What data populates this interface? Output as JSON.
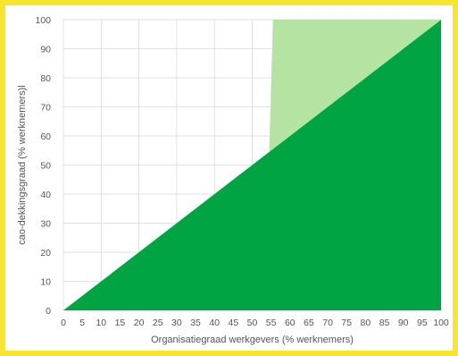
{
  "chart_data": {
    "type": "area",
    "title": "",
    "xlabel": "Organisatiegraad werkgevers (% werknemers)",
    "ylabel": "cao-dekkingsgraad (% werknemers)l",
    "xlim": [
      0,
      100
    ],
    "ylim": [
      0,
      100
    ],
    "x_ticks": [
      0,
      5,
      10,
      15,
      20,
      25,
      30,
      35,
      40,
      45,
      50,
      55,
      60,
      65,
      70,
      75,
      80,
      85,
      90,
      95,
      100
    ],
    "y_ticks": [
      0,
      10,
      20,
      30,
      40,
      50,
      60,
      70,
      80,
      90,
      100
    ],
    "grid": true,
    "legend": "none",
    "series": [
      {
        "values_x": [
          0,
          100,
          100
        ],
        "values_y": [
          0,
          100,
          0
        ],
        "color": "#00a443"
      },
      {
        "values_x": [
          54.5,
          55.5,
          100,
          100
        ],
        "values_y": [
          54.5,
          100,
          100,
          100
        ],
        "color": "#b5e3a2"
      }
    ]
  }
}
